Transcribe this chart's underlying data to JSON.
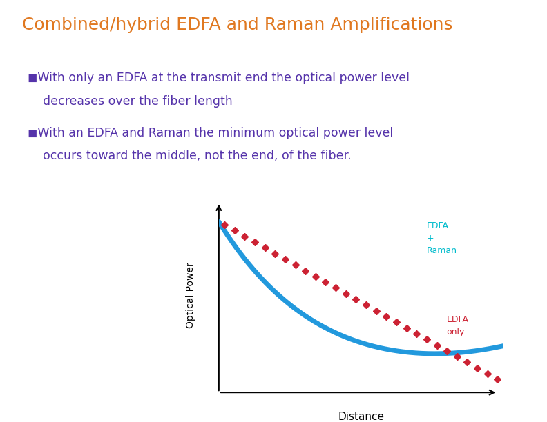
{
  "title": "Combined/hybrid EDFA and Raman Amplifications",
  "title_color": "#E07820",
  "title_fontsize": 18,
  "bullet1_line1": "◼With only an EDFA at the transmit end the optical power level",
  "bullet1_line2": "    decreases over the fiber length",
  "bullet2_line1": "◼With an EDFA and Raman the minimum optical power level",
  "bullet2_line2": "    occurs toward the middle, not the end, of the fiber.",
  "bullet_color": "#5533AA",
  "bullet_fontsize": 12.5,
  "ylabel": "Optical Power",
  "xlabel": "Distance",
  "edfa_raman_label": "EDFA\n+\nRaman",
  "edfa_only_label": "EDFA\nonly",
  "edfa_raman_color": "#2299DD",
  "edfa_only_color": "#CC2233",
  "label_edfa_raman_color": "#00BBCC",
  "label_edfa_only_color": "#CC2233",
  "bg_color": "#FFFFFF"
}
